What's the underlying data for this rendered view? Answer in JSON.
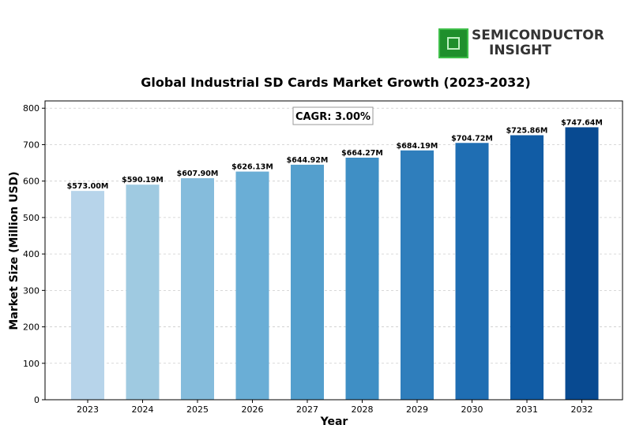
{
  "logo": {
    "line1": "SEMICONDUCTOR",
    "line2": "INSIGHT",
    "icon": "chip-icon",
    "brand_color": "#1f8f2c"
  },
  "chart_data": {
    "type": "bar",
    "title": "Global Industrial SD Cards Market Growth (2023-2032)",
    "xlabel": "Year",
    "ylabel": "Market Size (Million USD)",
    "ylim": [
      0,
      820
    ],
    "yticks": [
      0,
      100,
      200,
      300,
      400,
      500,
      600,
      700,
      800
    ],
    "grid": true,
    "annotation": "CAGR: 3.00%",
    "categories": [
      "2023",
      "2024",
      "2025",
      "2026",
      "2027",
      "2028",
      "2029",
      "2030",
      "2031",
      "2032"
    ],
    "values": [
      573.0,
      590.19,
      607.9,
      626.13,
      644.92,
      664.27,
      684.19,
      704.72,
      725.86,
      747.64
    ],
    "value_labels": [
      "$573.00M",
      "$590.19M",
      "$607.90M",
      "$626.13M",
      "$644.92M",
      "$664.27M",
      "$684.19M",
      "$704.72M",
      "$725.86M",
      "$747.64M"
    ],
    "colors": [
      "#b7d4ea",
      "#9fcae1",
      "#85bcdc",
      "#6aaed6",
      "#549fcd",
      "#3f8fc5",
      "#2f7ebc",
      "#1f6eb3",
      "#115ca5",
      "#084a91"
    ]
  }
}
